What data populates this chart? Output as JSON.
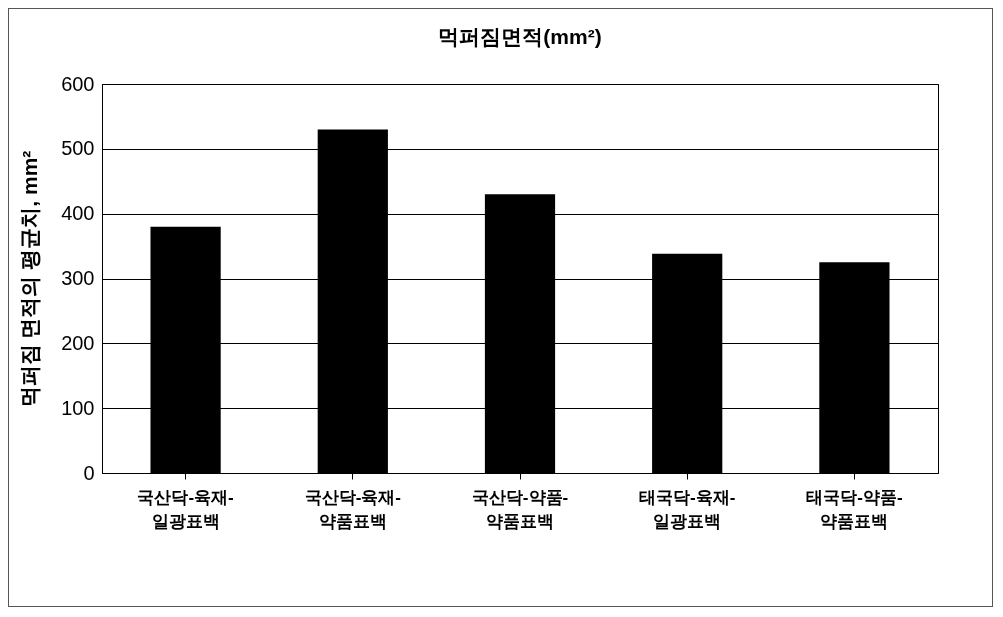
{
  "chart_data": {
    "type": "bar",
    "title": "먹퍼짐면적(mm²)",
    "ylabel": "먹퍼짐 면적의 평균치, mm²",
    "categories": [
      "국산닥-육재-일광표백",
      "국산닥-육재-약품표백",
      "국산닥-약품-약품표백",
      "태국닥-육재-일광표백",
      "태국닥-약품-약품표백"
    ],
    "values": [
      380,
      530,
      430,
      338,
      325
    ],
    "color": "#000000",
    "ylim": [
      0,
      600
    ],
    "yticks": [
      0,
      100,
      200,
      300,
      400,
      500,
      600
    ],
    "grid": "y"
  }
}
